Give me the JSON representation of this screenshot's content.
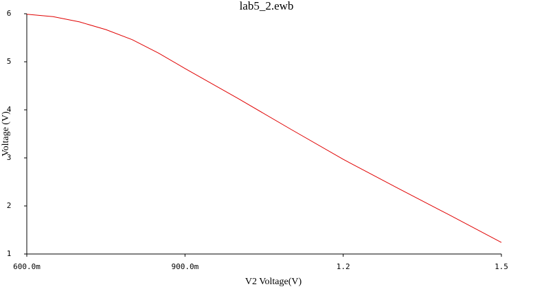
{
  "chart_data": {
    "type": "line",
    "title": "lab5_2.ewb",
    "x_label": "V2 Voltage(V)",
    "y_label": "Voltage (V)",
    "x": [
      0.6,
      0.65,
      0.7,
      0.75,
      0.8,
      0.85,
      0.9,
      1.0,
      1.1,
      1.2,
      1.3,
      1.4,
      1.5
    ],
    "values": [
      5.99,
      5.94,
      5.83,
      5.67,
      5.46,
      5.18,
      4.86,
      4.24,
      3.6,
      2.97,
      2.39,
      1.82,
      1.24
    ],
    "color": "#e00000",
    "xlim": [
      0.6,
      1.5
    ],
    "xticks": [
      {
        "value": 0.6,
        "label": "600.0m"
      },
      {
        "value": 0.9,
        "label": "900.0m"
      },
      1.2,
      1.5
    ],
    "ylim": [
      1,
      6
    ],
    "yticks": [
      1,
      2,
      3,
      4,
      5,
      6
    ],
    "grid": false
  }
}
